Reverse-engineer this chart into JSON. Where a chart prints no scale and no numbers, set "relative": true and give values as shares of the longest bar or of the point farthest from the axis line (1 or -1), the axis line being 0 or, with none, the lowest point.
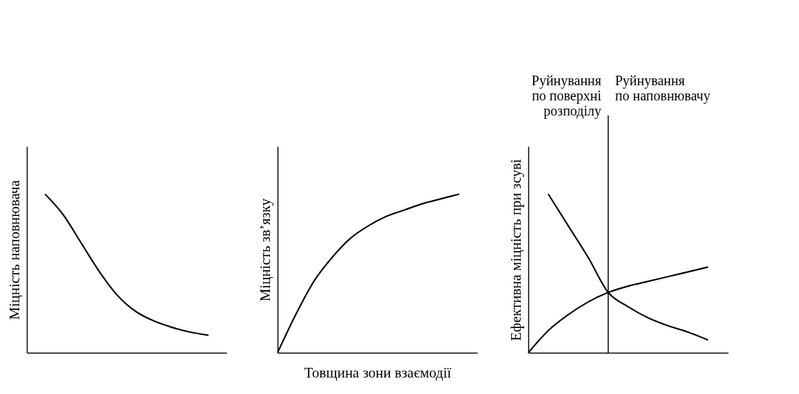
{
  "chart_data": [
    {
      "type": "line",
      "relative": true,
      "ylabel": "Міцність наповнювача",
      "line_style": "solid",
      "categories": [
        null,
        null,
        null,
        null,
        null,
        null,
        null,
        null,
        null,
        null,
        null,
        null
      ],
      "series": [
        {
          "color": "#000000",
          "values": [
            null,
            1.0,
            0.87,
            0.69,
            0.51,
            0.36,
            0.26,
            0.2,
            0.16,
            0.13,
            0.11,
            null
          ]
        }
      ]
    },
    {
      "type": "line",
      "relative": true,
      "ylabel": "Міцність зв’язку",
      "xlabel": "Товщина зони взаємодії",
      "line_style": "solid",
      "categories": [
        null,
        null,
        null,
        null,
        null,
        null,
        null,
        null,
        null,
        null,
        null,
        null
      ],
      "series": [
        {
          "color": "#000000",
          "values": [
            0,
            0.24,
            0.45,
            0.6,
            0.72,
            0.8,
            0.86,
            0.9,
            0.94,
            0.97,
            1.0,
            null
          ]
        }
      ]
    },
    {
      "type": "line",
      "relative": true,
      "ylabel": "Ефективна міцність при зсуві",
      "line_style": "solid",
      "categories": [
        null,
        null,
        null,
        null,
        null,
        null,
        null,
        null,
        null,
        null,
        null
      ],
      "series": [
        {
          "color": "#000000",
          "values": [
            null,
            1.0,
            0.8,
            0.6,
            0.38,
            0.29,
            0.22,
            0.17,
            0.13,
            0.08,
            null
          ]
        },
        {
          "color": "#000000",
          "values": [
            0,
            0.14,
            0.24,
            0.32,
            0.38,
            0.42,
            0.45,
            0.48,
            0.51,
            0.54,
            null
          ]
        }
      ],
      "annotations": [
        "Руйнування\nпо поверхні\nрозподілу",
        "Руйнування\nпо наповнювачу"
      ]
    }
  ]
}
